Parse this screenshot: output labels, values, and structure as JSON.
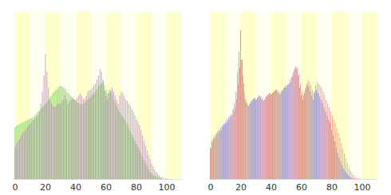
{
  "chart_data": [
    {
      "type": "bar",
      "stacked": false,
      "grid": false,
      "tick_labels": "x",
      "x": [
        0,
        1,
        2,
        3,
        4,
        5,
        6,
        7,
        8,
        9,
        10,
        11,
        12,
        13,
        14,
        15,
        16,
        17,
        18,
        19,
        20,
        21,
        22,
        23,
        24,
        25,
        26,
        27,
        28,
        29,
        30,
        31,
        32,
        33,
        34,
        35,
        36,
        37,
        38,
        39,
        40,
        41,
        42,
        43,
        44,
        45,
        46,
        47,
        48,
        49,
        50,
        51,
        52,
        53,
        54,
        55,
        56,
        57,
        58,
        59,
        60,
        61,
        62,
        63,
        64,
        65,
        66,
        67,
        68,
        69,
        70,
        71,
        72,
        73,
        74,
        75,
        76,
        77,
        78,
        79,
        80,
        81,
        82,
        83,
        84,
        85,
        86,
        87,
        88,
        89,
        90,
        91,
        92,
        93,
        94,
        95,
        96,
        97,
        98,
        99,
        100,
        101,
        102,
        103,
        104,
        105
      ],
      "xlim": [
        -1,
        110
      ],
      "xticks": [
        0,
        20,
        40,
        60,
        80,
        100
      ],
      "ylim": [
        0,
        210
      ],
      "series": [
        {
          "color": "#80d060",
          "values": [
            65,
            67,
            68,
            69,
            70,
            71,
            72,
            73,
            74,
            75,
            76,
            77,
            78,
            80,
            82,
            84,
            86,
            88,
            90,
            92,
            95,
            97,
            100,
            103,
            105,
            108,
            110,
            112,
            114,
            116,
            117,
            116,
            115,
            113,
            110,
            108,
            106,
            104,
            102,
            100,
            98,
            96,
            95,
            94,
            94,
            95,
            96,
            98,
            100,
            102,
            104,
            106,
            108,
            110,
            113,
            116,
            118,
            120,
            122,
            118,
            112,
            108,
            112,
            110,
            106,
            100,
            96,
            92,
            88,
            84,
            80,
            78,
            75,
            72,
            68,
            64,
            60,
            56,
            52,
            48,
            44,
            40,
            36,
            32,
            28,
            24,
            20,
            16,
            12,
            9,
            7,
            5,
            4,
            3,
            2,
            1,
            1,
            0,
            0,
            0,
            0,
            0,
            0,
            0,
            0,
            0
          ]
        },
        {
          "color": "#9a5ca8",
          "values": [
            40,
            45,
            48,
            50,
            55,
            58,
            60,
            62,
            65,
            68,
            70,
            72,
            74,
            76,
            78,
            80,
            85,
            95,
            110,
            130,
            157,
            135,
            115,
            100,
            95,
            92,
            90,
            92,
            95,
            95,
            95,
            98,
            100,
            105,
            100,
            95,
            98,
            100,
            102,
            100,
            100,
            102,
            105,
            108,
            105,
            100,
            102,
            105,
            110,
            112,
            112,
            115,
            118,
            120,
            125,
            130,
            138,
            135,
            125,
            110,
            105,
            100,
            108,
            112,
            115,
            110,
            105,
            100,
            95,
            105,
            110,
            108,
            105,
            100,
            98,
            95,
            92,
            88,
            85,
            80,
            75,
            72,
            68,
            62,
            55,
            48,
            42,
            36,
            30,
            25,
            20,
            16,
            12,
            9,
            7,
            5,
            3,
            2,
            1,
            1,
            1,
            0,
            0,
            0,
            0,
            0
          ]
        }
      ]
    },
    {
      "type": "bar",
      "stacked": false,
      "grid": false,
      "tick_labels": "x",
      "x": [
        0,
        1,
        2,
        3,
        4,
        5,
        6,
        7,
        8,
        9,
        10,
        11,
        12,
        13,
        14,
        15,
        16,
        17,
        18,
        19,
        20,
        21,
        22,
        23,
        24,
        25,
        26,
        27,
        28,
        29,
        30,
        31,
        32,
        33,
        34,
        35,
        36,
        37,
        38,
        39,
        40,
        41,
        42,
        43,
        44,
        45,
        46,
        47,
        48,
        49,
        50,
        51,
        52,
        53,
        54,
        55,
        56,
        57,
        58,
        59,
        60,
        61,
        62,
        63,
        64,
        65,
        66,
        67,
        68,
        69,
        70,
        71,
        72,
        73,
        74,
        75,
        76,
        77,
        78,
        79,
        80,
        81,
        82,
        83,
        84,
        85,
        86,
        87,
        88,
        89,
        90,
        91,
        92,
        93,
        94,
        95,
        96,
        97,
        98,
        99,
        100,
        101,
        102,
        103,
        104,
        105
      ],
      "xlim": [
        -1,
        110
      ],
      "xticks": [
        0,
        20,
        40,
        60,
        80,
        100
      ],
      "ylim": [
        0,
        210
      ],
      "series": [
        {
          "color": "#4a4ad0",
          "values": [
            40,
            48,
            52,
            55,
            58,
            60,
            62,
            65,
            68,
            70,
            72,
            75,
            78,
            80,
            82,
            88,
            95,
            110,
            135,
            160,
            187,
            150,
            120,
            100,
            95,
            92,
            95,
            98,
            100,
            102,
            100,
            102,
            105,
            103,
            100,
            98,
            100,
            104,
            106,
            108,
            106,
            108,
            110,
            112,
            110,
            108,
            106,
            110,
            112,
            115,
            115,
            118,
            120,
            122,
            128,
            135,
            140,
            138,
            130,
            115,
            105,
            100,
            108,
            115,
            118,
            115,
            110,
            105,
            100,
            110,
            112,
            108,
            104,
            100,
            96,
            90,
            85,
            80,
            75,
            70,
            62,
            55,
            48,
            40,
            33,
            27,
            22,
            17,
            13,
            10,
            7,
            5,
            3,
            2,
            1,
            1,
            0,
            0,
            0,
            0,
            0,
            0,
            0,
            0,
            0,
            0
          ]
        },
        {
          "color": "#e05050",
          "values": [
            38,
            46,
            50,
            52,
            56,
            58,
            60,
            62,
            66,
            68,
            70,
            72,
            75,
            78,
            80,
            85,
            90,
            100,
            120,
            140,
            150,
            130,
            110,
            98,
            95,
            92,
            95,
            98,
            100,
            102,
            100,
            103,
            105,
            104,
            102,
            100,
            102,
            104,
            106,
            108,
            107,
            109,
            111,
            113,
            112,
            110,
            108,
            112,
            115,
            118,
            118,
            120,
            125,
            128,
            132,
            138,
            142,
            140,
            132,
            120,
            110,
            105,
            112,
            120,
            125,
            122,
            118,
            112,
            108,
            118,
            122,
            120,
            118,
            115,
            110,
            106,
            100,
            95,
            90,
            85,
            80,
            75,
            70,
            64,
            58,
            52,
            45,
            38,
            32,
            26,
            20,
            15,
            11,
            8,
            5,
            3,
            2,
            1,
            1,
            0,
            0,
            0,
            0,
            0,
            0,
            0
          ]
        }
      ]
    }
  ]
}
